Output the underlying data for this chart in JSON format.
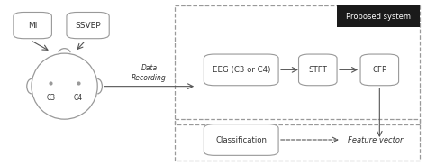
{
  "bg_color": "#ffffff",
  "box_edge_color": "#999999",
  "text_color": "#333333",
  "proposed_bg": "#1a1a1a",
  "proposed_text": "#ffffff",
  "proposed_label": "Proposed system",
  "mi_label": "MI",
  "ssvep_label": "SSVEP",
  "c3_label": "C3",
  "c4_label": "C4",
  "data_recording_label": "Data\nRecording",
  "eeg_label": "EEG (C3 or C4)",
  "stft_label": "STFT",
  "cfp_label": "CFP",
  "classification_label": "Classification",
  "feature_vector_label": "Feature vector",
  "arrow_color": "#555555",
  "dashed_color": "#999999",
  "figw": 4.74,
  "figh": 1.84,
  "dpi": 100
}
